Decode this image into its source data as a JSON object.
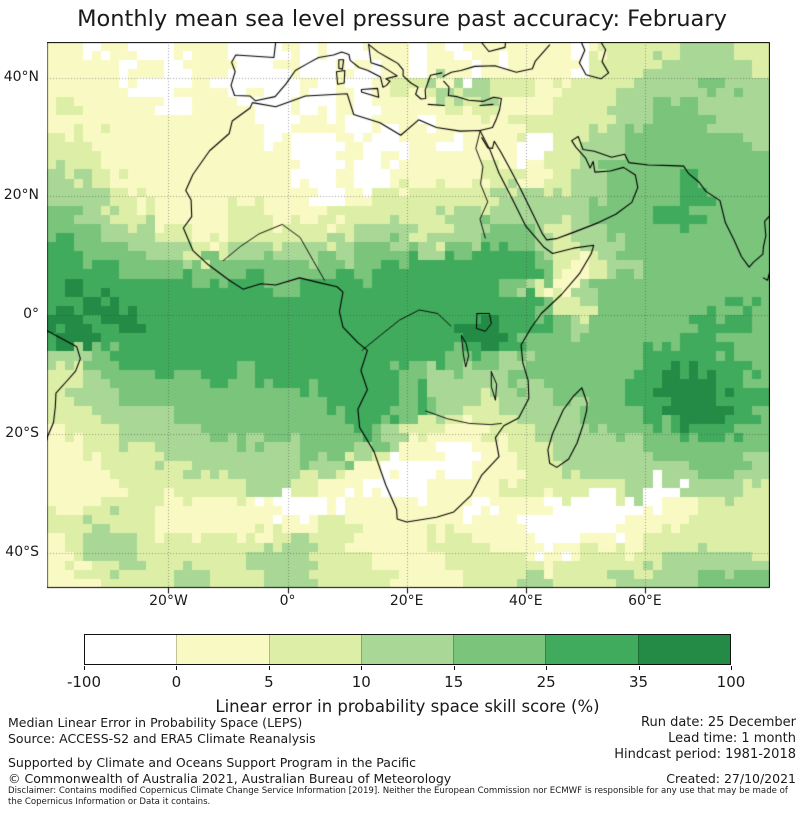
{
  "title": "Monthly mean sea level pressure past accuracy: February",
  "colorbar": {
    "ticks": [
      "-100",
      "0",
      "5",
      "10",
      "15",
      "25",
      "35",
      "100"
    ],
    "colors": [
      "#ffffff",
      "#f9f9c4",
      "#ddefa6",
      "#a9d896",
      "#7ac47b",
      "#41ab5d",
      "#238b45"
    ],
    "label": "Linear error in probability space skill score (%)"
  },
  "footer": {
    "left": [
      "Median Linear Error in Probability Space (LEPS)",
      "Source: ACCESS-S2 and ERA5 Climate Reanalysis",
      "Supported by Climate and Oceans Support Program in the Pacific",
      "© Commonwealth of Australia 2021, Australian Bureau of Meteorology"
    ],
    "right": [
      "Run date: 25 December",
      "Lead time: 1 month",
      "Hindcast period: 1981-2018",
      "Created: 27/10/2021"
    ],
    "disclaimer": "Disclaimer: Contains modified Copernicus Climate Change Service Information [2019]. Neither the European Commission nor ECMWF is responsible for any use that may be made of the Copernicus Information or Data it contains."
  },
  "chart_data": {
    "type": "heatmap",
    "title": "Monthly mean sea level pressure past accuracy: February",
    "legend_label": "Linear error in probability space skill score (%)",
    "lon_range": [
      -40.4,
      81.0
    ],
    "lat_range": [
      -45.9,
      46.0
    ],
    "x_ticks": [
      {
        "label": "20°W",
        "lon": -20
      },
      {
        "label": "0°",
        "lon": 0
      },
      {
        "label": "20°E",
        "lon": 20
      },
      {
        "label": "40°E",
        "lon": 40
      },
      {
        "label": "60°E",
        "lon": 60
      }
    ],
    "y_ticks": [
      {
        "label": "40°N",
        "lat": 40
      },
      {
        "label": "20°N",
        "lat": 20
      },
      {
        "label": "0°",
        "lat": 0
      },
      {
        "label": "20°S",
        "lat": -20
      },
      {
        "label": "40°S",
        "lat": -40
      }
    ],
    "gridlines": {
      "lons": [
        -20,
        0,
        20,
        40,
        60
      ],
      "lats": [
        40,
        20,
        0,
        -20,
        -40
      ]
    },
    "levels_percent": [
      "-100–0",
      "0–5",
      "5–10",
      "10–15",
      "15–25",
      "25–35",
      "35–100"
    ],
    "palette": [
      "#ffffff",
      "#f9f9c4",
      "#ddefa6",
      "#a9d896",
      "#7ac47b",
      "#41ab5d",
      "#238b45"
    ],
    "grid_note": "Skill-score bins (digit = palette/levels index). 30 rows x 40 cols covering lat 46N..45.9S, lon 40.4W..81E; each cell ~3 deg.",
    "grid": [
      "1101100111000101001101011011101222233322",
      "1111010011000100101101101111102223333332",
      "1111100110010010101223333221222233334433",
      "1211110011100100101111222111222333443333",
      "1121111111110011001110111122222334444333",
      "2211111111110100110011011100223344444443",
      "2221111111111100101011111101223444444444",
      "3322111111111100100111112212233444454444",
      "3332211111111110112222222333333444455444",
      "4433221111221111222222333333334445554444",
      "4443332211222222233322334443233444444444",
      "5544433322333333344433445543223344444444",
      "5555444444444444445555555554212334444444",
      "5655555555554455555555555432134444444444",
      "5566555555555555555555555554223444444454",
      "6656655555555555555555566555434444445554",
      "5665555555555555555555556544444444455444",
      "3344555555555555555555444334444445555544",
      "2234444445445555555443333344444455666554",
      "2333444444444445555554332333444455666655",
      "2223333444444444555443222233334445566554",
      "1222333334444444454322112223333444455544",
      "1122223333333344432111001122333334444443",
      "1112222233333333211000001122233333344433",
      "1111222222233221100001111222222230033332",
      "1122221111110000111111100111000000112222",
      "2233221111111112211111111100000011122222",
      "1233322222222332211112221110011112222222",
      "1223332222233322221111222221122222333333",
      "1112222332223332222111122233222333334444"
    ],
    "coastlines": [
      [
        [
          -5.9,
          35.8
        ],
        [
          -2,
          35.1
        ],
        [
          3,
          36.9
        ],
        [
          10,
          37.3
        ],
        [
          11.1,
          33.8
        ],
        [
          15.5,
          32.4
        ],
        [
          19,
          30.3
        ],
        [
          22,
          32.9
        ],
        [
          25,
          31.6
        ],
        [
          29,
          31
        ],
        [
          32.3,
          31.1
        ],
        [
          34,
          27.8
        ],
        [
          35.5,
          23.9
        ],
        [
          37,
          21
        ],
        [
          38.5,
          18
        ],
        [
          40,
          15
        ],
        [
          43,
          11.5
        ],
        [
          44.5,
          10.4
        ],
        [
          48,
          11.3
        ],
        [
          51.4,
          11.8
        ],
        [
          51,
          10.4
        ],
        [
          49,
          7
        ],
        [
          46,
          3.5
        ],
        [
          42.6,
          0.3
        ],
        [
          40.9,
          -2.1
        ],
        [
          39.2,
          -5
        ],
        [
          39.5,
          -8
        ],
        [
          40.4,
          -11
        ],
        [
          40.5,
          -14
        ],
        [
          38.8,
          -17.3
        ],
        [
          36.3,
          -18.6
        ],
        [
          34.9,
          -20.6
        ],
        [
          35.5,
          -23.8
        ],
        [
          32.6,
          -26.9
        ],
        [
          30.8,
          -30.3
        ],
        [
          27.9,
          -33.1
        ],
        [
          25,
          -34
        ],
        [
          20,
          -34.8
        ],
        [
          18.4,
          -34.3
        ],
        [
          18.3,
          -32.7
        ],
        [
          16.5,
          -28.6
        ],
        [
          14.5,
          -22.9
        ],
        [
          12.1,
          -18.9
        ],
        [
          11.8,
          -15.8
        ],
        [
          13.4,
          -12.5
        ],
        [
          12.3,
          -9.3
        ],
        [
          13.4,
          -5.9
        ],
        [
          11.8,
          -4.6
        ],
        [
          9.3,
          -2
        ],
        [
          8.7,
          0.6
        ],
        [
          9.3,
          3.9
        ],
        [
          8.3,
          4.8
        ],
        [
          5.3,
          5.5
        ],
        [
          2,
          6.3
        ],
        [
          -2,
          5.1
        ],
        [
          -4.5,
          5.3
        ],
        [
          -7.5,
          4.4
        ],
        [
          -9.8,
          5.9
        ],
        [
          -13.3,
          8.5
        ],
        [
          -15.9,
          10.9
        ],
        [
          -17.5,
          14.7
        ],
        [
          -16.1,
          16.6
        ],
        [
          -16.2,
          19.4
        ],
        [
          -17.1,
          21
        ],
        [
          -15.9,
          23.7
        ],
        [
          -13.1,
          27.7
        ],
        [
          -9.8,
          30.6
        ],
        [
          -9.3,
          32.7
        ],
        [
          -6.3,
          34.9
        ],
        [
          -5.9,
          35.8
        ]
      ],
      [
        [
          -2,
          46
        ],
        [
          -2.3,
          43.4
        ],
        [
          -8.7,
          43.8
        ],
        [
          -9.4,
          42.6
        ],
        [
          -8.8,
          41
        ],
        [
          -9.5,
          38.7
        ],
        [
          -8.9,
          37
        ],
        [
          -6.3,
          36.9
        ],
        [
          -5.4,
          36.1
        ],
        [
          -2.1,
          36.8
        ],
        [
          -0.3,
          38.9
        ],
        [
          1.3,
          41.2
        ],
        [
          3.4,
          42.4
        ],
        [
          5.2,
          43.4
        ],
        [
          7.7,
          43.8
        ],
        [
          9.1,
          44.3
        ],
        [
          10.3,
          43.9
        ],
        [
          10.5,
          42.9
        ],
        [
          12,
          41.7
        ],
        [
          13.5,
          41.2
        ],
        [
          15.6,
          40.1
        ],
        [
          16,
          38.4
        ],
        [
          16.6,
          38.7
        ],
        [
          17.2,
          39.4
        ],
        [
          16.5,
          39.8
        ],
        [
          18.4,
          40.3
        ],
        [
          15.9,
          41.9
        ],
        [
          14,
          42.5
        ],
        [
          13.6,
          45.6
        ]
      ],
      [
        [
          13.6,
          45.6
        ],
        [
          15.2,
          44.3
        ],
        [
          16.9,
          43.3
        ],
        [
          18.5,
          42.4
        ],
        [
          19.4,
          41.3
        ],
        [
          19.4,
          40.3
        ],
        [
          20.7,
          39.1
        ],
        [
          21.9,
          38.4
        ],
        [
          21.5,
          37.2
        ],
        [
          22.4,
          36.4
        ],
        [
          23.2,
          36.5
        ],
        [
          23.1,
          37.9
        ],
        [
          24,
          40.4
        ],
        [
          25.9,
          40.8
        ]
      ],
      [
        [
          26.1,
          40.2
        ],
        [
          27.5,
          40.9
        ],
        [
          29.1,
          41.2
        ],
        [
          31.4,
          41.9
        ],
        [
          34.8,
          42
        ],
        [
          38.4,
          40.9
        ],
        [
          41.1,
          41.5
        ],
        [
          41.6,
          42.8
        ],
        [
          44,
          45.5
        ]
      ],
      [
        [
          32.5,
          46
        ],
        [
          33.8,
          44.4
        ],
        [
          36.5,
          45.1
        ],
        [
          36.6,
          46
        ]
      ],
      [
        [
          26.2,
          39.4
        ],
        [
          27.1,
          38.4
        ],
        [
          27,
          37
        ],
        [
          28.5,
          36.8
        ],
        [
          30.4,
          36.2
        ],
        [
          32.8,
          36
        ],
        [
          34.6,
          36.7
        ],
        [
          35.9,
          36.5
        ],
        [
          35.6,
          34.6
        ],
        [
          35,
          32.9
        ],
        [
          34.4,
          31.6
        ],
        [
          32.3,
          31.1
        ]
      ],
      [
        [
          23.6,
          35.5
        ],
        [
          26.3,
          35.3
        ]
      ],
      [
        [
          32.3,
          35.3
        ],
        [
          34.5,
          35.5
        ]
      ],
      [
        [
          12.4,
          38
        ],
        [
          15.1,
          38.2
        ],
        [
          15.3,
          36.7
        ],
        [
          12.4,
          37.6
        ],
        [
          12.4,
          38
        ]
      ],
      [
        [
          8.2,
          41
        ],
        [
          9.6,
          41.2
        ],
        [
          9.5,
          39.1
        ],
        [
          8.4,
          38.9
        ],
        [
          8.2,
          41
        ]
      ],
      [
        [
          8.6,
          43
        ],
        [
          9.4,
          43
        ],
        [
          9.2,
          41.4
        ],
        [
          8.6,
          41.6
        ],
        [
          8.6,
          43
        ]
      ],
      [
        [
          49.3,
          46
        ],
        [
          49.9,
          44.6
        ],
        [
          49,
          42.5
        ],
        [
          50.1,
          40.5
        ],
        [
          52.6,
          39.8
        ],
        [
          53.9,
          40.8
        ],
        [
          52.8,
          42.7
        ],
        [
          53.4,
          44.7
        ],
        [
          52.6,
          46
        ]
      ],
      [
        [
          32.6,
          29.9
        ],
        [
          33.6,
          28.2
        ],
        [
          34.4,
          28.1
        ],
        [
          34.7,
          29.3
        ],
        [
          35.8,
          27.5
        ],
        [
          37.2,
          24.9
        ],
        [
          39.1,
          21.3
        ],
        [
          41.2,
          17
        ],
        [
          42.8,
          13.7
        ],
        [
          43.5,
          12.7
        ],
        [
          45.1,
          12.9
        ],
        [
          48.1,
          14
        ],
        [
          52.2,
          15.6
        ],
        [
          55.1,
          17
        ],
        [
          57.8,
          19
        ],
        [
          58.8,
          21.5
        ],
        [
          58.4,
          23.6
        ],
        [
          56.4,
          24.9
        ],
        [
          54.2,
          24.3
        ],
        [
          51.6,
          24.1
        ],
        [
          51.3,
          25.9
        ],
        [
          50.8,
          24.8
        ],
        [
          50,
          26.5
        ],
        [
          48.4,
          28.3
        ],
        [
          47.7,
          29.4
        ],
        [
          48.8,
          30.1
        ],
        [
          49.6,
          27.9
        ],
        [
          51.5,
          27.6
        ],
        [
          54.4,
          26.6
        ],
        [
          56.6,
          27.1
        ],
        [
          57.3,
          25.7
        ],
        [
          60.6,
          25.3
        ],
        [
          64.6,
          25.2
        ],
        [
          66.5,
          25.1
        ],
        [
          67.3,
          23.9
        ],
        [
          69.1,
          22.4
        ],
        [
          70.2,
          20.9
        ],
        [
          72.6,
          19.3
        ],
        [
          73.5,
          15.6
        ],
        [
          74.9,
          12.8
        ],
        [
          76.2,
          9.9
        ],
        [
          77.5,
          8.1
        ],
        [
          78.2,
          8.9
        ],
        [
          79.8,
          10.3
        ],
        [
          79.9,
          11.5
        ],
        [
          80.3,
          13.4
        ],
        [
          80.1,
          15.8
        ],
        [
          81,
          16.8
        ]
      ],
      [
        [
          79.9,
          6.3
        ],
        [
          80.6,
          5.9
        ],
        [
          81,
          7.5
        ]
      ],
      [
        [
          -40.4,
          -2.6
        ],
        [
          -38.5,
          -3.6
        ],
        [
          -35.4,
          -5.3
        ],
        [
          -34.8,
          -7.3
        ],
        [
          -35.6,
          -9.4
        ],
        [
          -37.1,
          -11.1
        ],
        [
          -38.9,
          -13.1
        ],
        [
          -39,
          -15.4
        ],
        [
          -39.3,
          -18
        ],
        [
          -40.3,
          -20.4
        ],
        [
          -40.4,
          -21
        ]
      ],
      [
        [
          49.4,
          -12.2
        ],
        [
          50.3,
          -14.8
        ],
        [
          50.2,
          -16.1
        ],
        [
          49.6,
          -18.5
        ],
        [
          48.6,
          -21.5
        ],
        [
          47.2,
          -24.2
        ],
        [
          45.2,
          -25.6
        ],
        [
          44,
          -24.9
        ],
        [
          43.7,
          -22.6
        ],
        [
          44.5,
          -19.9
        ],
        [
          46.3,
          -15.9
        ],
        [
          48,
          -13.6
        ],
        [
          49.4,
          -12.2
        ]
      ]
    ],
    "lakes": [
      [
        [
          31.8,
          0.3
        ],
        [
          33.9,
          0.3
        ],
        [
          34.2,
          -1.4
        ],
        [
          33.2,
          -2.7
        ],
        [
          31.7,
          -2.2
        ],
        [
          31.8,
          0.3
        ]
      ],
      [
        [
          29.2,
          -3.4
        ],
        [
          30,
          -4.8
        ],
        [
          30.4,
          -6.8
        ],
        [
          29.9,
          -8.7
        ],
        [
          29.5,
          -6.5
        ],
        [
          29.2,
          -3.4
        ]
      ],
      [
        [
          34.2,
          -9.5
        ],
        [
          35.1,
          -11.6
        ],
        [
          34.9,
          -14.3
        ],
        [
          34.2,
          -12
        ],
        [
          34.2,
          -9.5
        ]
      ]
    ],
    "rivers": [
      [
        [
          32.3,
          30.9
        ],
        [
          31.6,
          28.1
        ],
        [
          32.8,
          25
        ],
        [
          32.4,
          22.1
        ],
        [
          33.6,
          19.1
        ],
        [
          32.3,
          16.2
        ],
        [
          33.2,
          13
        ]
      ],
      [
        [
          -10.8,
          9.2
        ],
        [
          -7.9,
          11.6
        ],
        [
          -4.8,
          13.7
        ],
        [
          -0.9,
          15.3
        ],
        [
          2.1,
          13.1
        ],
        [
          4.3,
          9.2
        ],
        [
          6.2,
          5.9
        ]
      ],
      [
        [
          12.5,
          -5.9
        ],
        [
          15.8,
          -3.2
        ],
        [
          18.8,
          -0.8
        ],
        [
          22.1,
          0.9
        ],
        [
          25.2,
          0.3
        ],
        [
          27.4,
          -1.8
        ]
      ],
      [
        [
          23.2,
          -16.1
        ],
        [
          26.8,
          -17.4
        ],
        [
          30.5,
          -18.2
        ],
        [
          34.1,
          -18.4
        ],
        [
          35.9,
          -18.2
        ]
      ]
    ]
  }
}
